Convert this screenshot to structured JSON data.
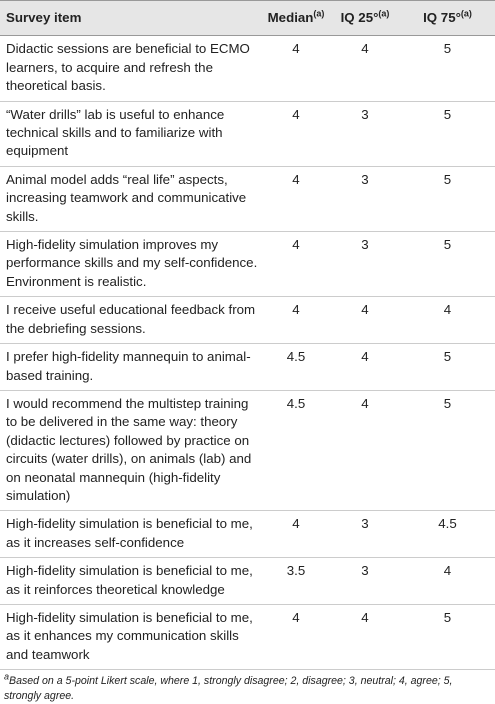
{
  "table": {
    "headers": [
      {
        "text": "Survey item"
      },
      {
        "text": "Median",
        "sup": "(a)"
      },
      {
        "text": "IQ 25°",
        "sup": "(a)"
      },
      {
        "text": "IQ 75°",
        "sup": "(a)"
      }
    ],
    "rows": [
      [
        "Didactic sessions are beneficial to ECMO learners, to acquire and refresh the theoretical basis.",
        4,
        4,
        5
      ],
      [
        "“Water drills” lab is useful to enhance technical skills and to familiarize with equipment",
        4,
        3,
        5
      ],
      [
        "Animal model adds “real life” aspects, increasing teamwork and communicative skills.",
        4,
        3,
        5
      ],
      [
        "High-fidelity simulation improves my performance skills and my self-confidence. Environment is realistic.",
        4,
        3,
        5
      ],
      [
        "I receive useful educational feedback from the debriefing sessions.",
        4,
        4,
        4
      ],
      [
        "I prefer high-fidelity mannequin to animal-based training.",
        4.5,
        4,
        5
      ],
      [
        "I would recommend the multistep training to be delivered in the same way: theory (didactic lectures) followed by practice on circuits (water drills), on animals (lab) and on neonatal mannequin (high-fidelity simulation)",
        4.5,
        4,
        5
      ],
      [
        "High-fidelity simulation is beneficial to me, as it increases self-confidence",
        4,
        3,
        4.5
      ],
      [
        "High-fidelity simulation is beneficial to me, as it reinforces theoretical knowledge",
        3.5,
        3,
        4
      ],
      [
        "High-fidelity simulation is beneficial to me, as it enhances my communication skills and teamwork",
        4,
        4,
        5
      ]
    ]
  },
  "footnote": {
    "marker": "a",
    "text": "Based on a 5-point Likert scale, where 1, strongly disagree; 2, disagree; 3, neutral; 4, agree; 5, strongly agree."
  }
}
